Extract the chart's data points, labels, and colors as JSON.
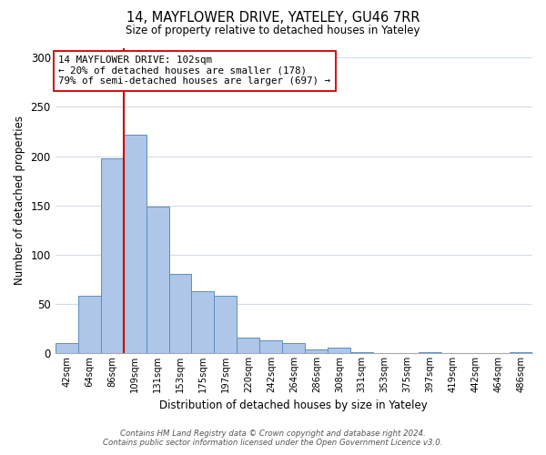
{
  "title": "14, MAYFLOWER DRIVE, YATELEY, GU46 7RR",
  "subtitle": "Size of property relative to detached houses in Yateley",
  "xlabel": "Distribution of detached houses by size in Yateley",
  "ylabel": "Number of detached properties",
  "bin_labels": [
    "42sqm",
    "64sqm",
    "86sqm",
    "109sqm",
    "131sqm",
    "153sqm",
    "175sqm",
    "197sqm",
    "220sqm",
    "242sqm",
    "264sqm",
    "286sqm",
    "308sqm",
    "331sqm",
    "353sqm",
    "375sqm",
    "397sqm",
    "419sqm",
    "442sqm",
    "464sqm",
    "486sqm"
  ],
  "bar_heights": [
    10,
    58,
    198,
    222,
    149,
    80,
    63,
    58,
    16,
    13,
    10,
    4,
    6,
    1,
    0,
    0,
    1,
    0,
    0,
    0,
    1
  ],
  "bar_color": "#aec6e8",
  "bar_edge_color": "#5a8fc2",
  "vline_color": "#cc0000",
  "annotation_line1": "14 MAYFLOWER DRIVE: 102sqm",
  "annotation_line2": "← 20% of detached houses are smaller (178)",
  "annotation_line3": "79% of semi-detached houses are larger (697) →",
  "annotation_box_color": "#ffffff",
  "annotation_box_edge": "#cc0000",
  "ylim": [
    0,
    310
  ],
  "yticks": [
    0,
    50,
    100,
    150,
    200,
    250,
    300
  ],
  "footer_line1": "Contains HM Land Registry data © Crown copyright and database right 2024.",
  "footer_line2": "Contains public sector information licensed under the Open Government Licence v3.0.",
  "bg_color": "#ffffff",
  "grid_color": "#d4dce8"
}
